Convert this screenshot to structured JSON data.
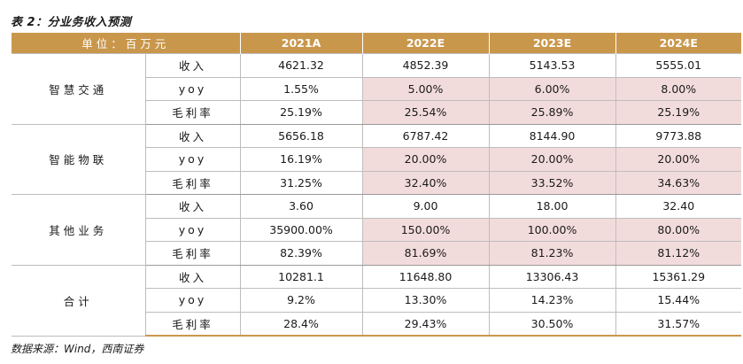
{
  "title": "表 2：分业务收入预测",
  "header": {
    "unit": "单位：百万元",
    "years": [
      "2021A",
      "2022E",
      "2023E",
      "2024E"
    ]
  },
  "segments": [
    {
      "name": "智慧交通",
      "rows": [
        {
          "metric": "收入",
          "values": [
            "4621.32",
            "4852.39",
            "5143.53",
            "5555.01"
          ]
        },
        {
          "metric": "yoy",
          "values": [
            "1.55%",
            "5.00%",
            "6.00%",
            "8.00%"
          ]
        },
        {
          "metric": "毛利率",
          "values": [
            "25.19%",
            "25.54%",
            "25.89%",
            "25.19%"
          ]
        }
      ]
    },
    {
      "name": "智能物联",
      "rows": [
        {
          "metric": "收入",
          "values": [
            "5656.18",
            "6787.42",
            "8144.90",
            "9773.88"
          ]
        },
        {
          "metric": "yoy",
          "values": [
            "16.19%",
            "20.00%",
            "20.00%",
            "20.00%"
          ]
        },
        {
          "metric": "毛利率",
          "values": [
            "31.25%",
            "32.40%",
            "33.52%",
            "34.63%"
          ]
        }
      ]
    },
    {
      "name": "其他业务",
      "rows": [
        {
          "metric": "收入",
          "values": [
            "3.60",
            "9.00",
            "18.00",
            "32.40"
          ]
        },
        {
          "metric": "yoy",
          "values": [
            "35900.00%",
            "150.00%",
            "100.00%",
            "80.00%"
          ]
        },
        {
          "metric": "毛利率",
          "values": [
            "82.39%",
            "81.69%",
            "81.23%",
            "81.12%"
          ]
        }
      ]
    },
    {
      "name": "合计",
      "rows": [
        {
          "metric": "收入",
          "values": [
            "10281.1",
            "11648.80",
            "13306.43",
            "15361.29"
          ]
        },
        {
          "metric": "yoy",
          "values": [
            "9.2%",
            "13.30%",
            "14.23%",
            "15.44%"
          ]
        },
        {
          "metric": "毛利率",
          "values": [
            "28.4%",
            "29.43%",
            "30.50%",
            "31.57%"
          ]
        }
      ]
    }
  ],
  "source": "数据来源：Wind，西南证券",
  "colors": {
    "header_bg": "#c9974c",
    "highlight_bg": "#f2dcdb"
  }
}
